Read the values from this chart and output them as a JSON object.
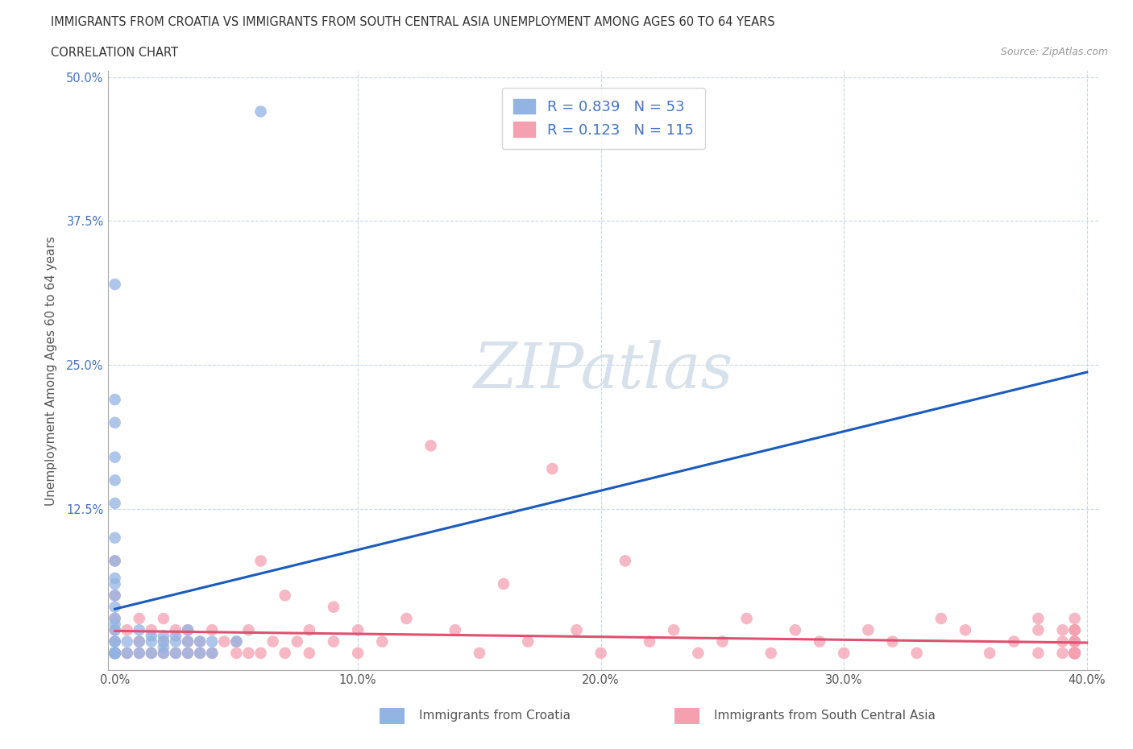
{
  "title_line1": "IMMIGRANTS FROM CROATIA VS IMMIGRANTS FROM SOUTH CENTRAL ASIA UNEMPLOYMENT AMONG AGES 60 TO 64 YEARS",
  "title_line2": "CORRELATION CHART",
  "source": "Source: ZipAtlas.com",
  "ylabel": "Unemployment Among Ages 60 to 64 years",
  "xlim": [
    -0.003,
    0.405
  ],
  "ylim": [
    -0.015,
    0.505
  ],
  "xticks": [
    0.0,
    0.1,
    0.2,
    0.3,
    0.4
  ],
  "yticks": [
    0.0,
    0.125,
    0.25,
    0.375,
    0.5
  ],
  "xtick_labels": [
    "0.0%",
    "10.0%",
    "20.0%",
    "30.0%",
    "40.0%"
  ],
  "ytick_labels": [
    "",
    "12.5%",
    "25.0%",
    "37.5%",
    "50.0%"
  ],
  "legend1_label": "Immigrants from Croatia",
  "legend2_label": "Immigrants from South Central Asia",
  "R1": 0.839,
  "N1": 53,
  "R2": 0.123,
  "N2": 115,
  "color1": "#92b4e3",
  "color2": "#f4a0b0",
  "trendline1_color": "#1a5bbd",
  "trendline2_color": "#e05070",
  "background_color": "#ffffff",
  "grid_color": "#c8d8e8",
  "croatia_x": [
    0.0,
    0.0,
    0.0,
    0.0,
    0.0,
    0.0,
    0.0,
    0.0,
    0.0,
    0.0,
    0.0,
    0.0,
    0.0,
    0.0,
    0.0,
    0.0,
    0.0,
    0.0,
    0.0,
    0.0,
    0.0,
    0.0,
    0.0,
    0.0,
    0.0,
    0.0,
    0.0,
    0.0,
    0.0,
    0.005,
    0.005,
    0.01,
    0.01,
    0.01,
    0.015,
    0.015,
    0.015,
    0.02,
    0.02,
    0.02,
    0.02,
    0.025,
    0.025,
    0.025,
    0.03,
    0.03,
    0.03,
    0.035,
    0.035,
    0.04,
    0.04,
    0.05,
    0.06
  ],
  "croatia_y": [
    0.0,
    0.0,
    0.0,
    0.0,
    0.0,
    0.0,
    0.0,
    0.0,
    0.0,
    0.0,
    0.0,
    0.0,
    0.01,
    0.01,
    0.02,
    0.025,
    0.03,
    0.04,
    0.05,
    0.06,
    0.065,
    0.08,
    0.1,
    0.13,
    0.15,
    0.17,
    0.2,
    0.22,
    0.32,
    0.0,
    0.01,
    0.0,
    0.01,
    0.02,
    0.0,
    0.01,
    0.015,
    0.0,
    0.005,
    0.01,
    0.015,
    0.0,
    0.01,
    0.015,
    0.0,
    0.01,
    0.02,
    0.0,
    0.01,
    0.0,
    0.01,
    0.01,
    0.47
  ],
  "sca_x": [
    0.0,
    0.0,
    0.0,
    0.0,
    0.0,
    0.0,
    0.0,
    0.0,
    0.0,
    0.0,
    0.0,
    0.0,
    0.0,
    0.0,
    0.005,
    0.005,
    0.01,
    0.01,
    0.01,
    0.015,
    0.015,
    0.02,
    0.02,
    0.02,
    0.025,
    0.025,
    0.03,
    0.03,
    0.03,
    0.035,
    0.035,
    0.04,
    0.04,
    0.045,
    0.05,
    0.05,
    0.055,
    0.055,
    0.06,
    0.06,
    0.065,
    0.07,
    0.07,
    0.075,
    0.08,
    0.08,
    0.09,
    0.09,
    0.1,
    0.1,
    0.11,
    0.12,
    0.13,
    0.14,
    0.15,
    0.16,
    0.17,
    0.18,
    0.19,
    0.2,
    0.21,
    0.22,
    0.23,
    0.24,
    0.25,
    0.26,
    0.27,
    0.28,
    0.29,
    0.3,
    0.31,
    0.32,
    0.33,
    0.34,
    0.35,
    0.36,
    0.37,
    0.38,
    0.38,
    0.38,
    0.39,
    0.39,
    0.39,
    0.395,
    0.395,
    0.395,
    0.395,
    0.395,
    0.395,
    0.395,
    0.395,
    0.395,
    0.395,
    0.395,
    0.395,
    0.395,
    0.395,
    0.395,
    0.395,
    0.395,
    0.395,
    0.395,
    0.395,
    0.395,
    0.395,
    0.395,
    0.395,
    0.395,
    0.395,
    0.395,
    0.395,
    0.395,
    0.395,
    0.395,
    0.395,
    0.395,
    0.395
  ],
  "sca_y": [
    0.0,
    0.0,
    0.0,
    0.0,
    0.0,
    0.0,
    0.0,
    0.0,
    0.0,
    0.01,
    0.02,
    0.03,
    0.05,
    0.08,
    0.0,
    0.02,
    0.0,
    0.01,
    0.03,
    0.0,
    0.02,
    0.0,
    0.01,
    0.03,
    0.0,
    0.02,
    0.0,
    0.01,
    0.02,
    0.0,
    0.01,
    0.0,
    0.02,
    0.01,
    0.0,
    0.01,
    0.0,
    0.02,
    0.0,
    0.08,
    0.01,
    0.0,
    0.05,
    0.01,
    0.0,
    0.02,
    0.01,
    0.04,
    0.0,
    0.02,
    0.01,
    0.03,
    0.18,
    0.02,
    0.0,
    0.06,
    0.01,
    0.16,
    0.02,
    0.0,
    0.08,
    0.01,
    0.02,
    0.0,
    0.01,
    0.03,
    0.0,
    0.02,
    0.01,
    0.0,
    0.02,
    0.01,
    0.0,
    0.03,
    0.02,
    0.0,
    0.01,
    0.0,
    0.02,
    0.03,
    0.0,
    0.01,
    0.02,
    0.0,
    0.0,
    0.0,
    0.0,
    0.0,
    0.0,
    0.0,
    0.0,
    0.0,
    0.0,
    0.0,
    0.0,
    0.0,
    0.0,
    0.0,
    0.0,
    0.0,
    0.0,
    0.0,
    0.0,
    0.0,
    0.0,
    0.01,
    0.02,
    0.03,
    0.0,
    0.01,
    0.02,
    0.0,
    0.01,
    0.0,
    0.0,
    0.01,
    0.02
  ]
}
